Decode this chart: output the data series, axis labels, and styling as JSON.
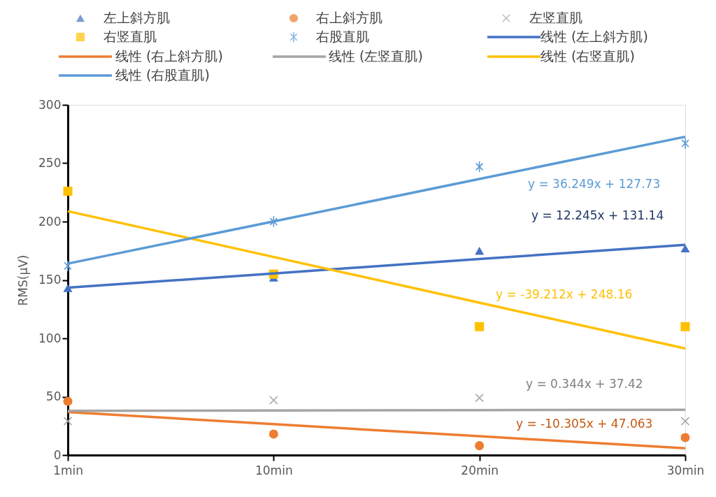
{
  "chart_data": {
    "type": "scatter",
    "ylabel": "RMS(μV)",
    "categories": [
      "1min",
      "10min",
      "20min",
      "30min"
    ],
    "ylim": [
      0,
      300
    ],
    "yticks": [
      0,
      50,
      100,
      150,
      200,
      250,
      300
    ],
    "grid": false,
    "legend": "top",
    "series": [
      {
        "name": "左上斜方肌",
        "marker": "triangle",
        "color": "#4472c4",
        "values": [
          143,
          152,
          175,
          177
        ]
      },
      {
        "name": "右上斜方肌",
        "marker": "circle",
        "color": "#ed7d31",
        "values": [
          46,
          18,
          8,
          15
        ]
      },
      {
        "name": "左竖直肌",
        "marker": "cross",
        "color": "#a5a5a5",
        "values": [
          29,
          47,
          49,
          29
        ]
      },
      {
        "name": "右竖直肌",
        "marker": "square",
        "color": "#ffc000",
        "values": [
          226,
          155,
          110,
          110
        ]
      },
      {
        "name": "右股直肌",
        "marker": "cross",
        "color": "#5b9bd5",
        "values": [
          162,
          200,
          247,
          267
        ]
      },
      {
        "name": "线性 (左上斜方肌)",
        "type": "line",
        "marker": "none",
        "color": "#4472c4",
        "values": [
          143.4,
          155.6,
          167.9,
          180.1
        ]
      },
      {
        "name": "线性 (右上斜方肌)",
        "type": "line",
        "marker": "none",
        "color": "#ed7d31",
        "values": [
          36.8,
          26.5,
          16.1,
          5.8
        ]
      },
      {
        "name": "线性 (左竖直肌)",
        "type": "line",
        "marker": "none",
        "color": "#a5a5a5",
        "values": [
          37.8,
          38.1,
          38.5,
          38.8
        ]
      },
      {
        "name": "线性 (右竖直肌)",
        "type": "line",
        "marker": "none",
        "color": "#ffc000",
        "values": [
          208.9,
          169.7,
          130.5,
          91.3
        ]
      },
      {
        "name": "线性 (右股直肌)",
        "type": "line",
        "marker": "none",
        "color": "#5b9bd5",
        "values": [
          164.0,
          200.2,
          236.5,
          272.7
        ]
      }
    ],
    "annotations": [
      "y = 36.249x + 127.73",
      "y = 12.245x + 131.14",
      "y = -39.212x + 248.16",
      "y = 0.344x + 37.42",
      "y = -10.305x + 47.063"
    ]
  }
}
